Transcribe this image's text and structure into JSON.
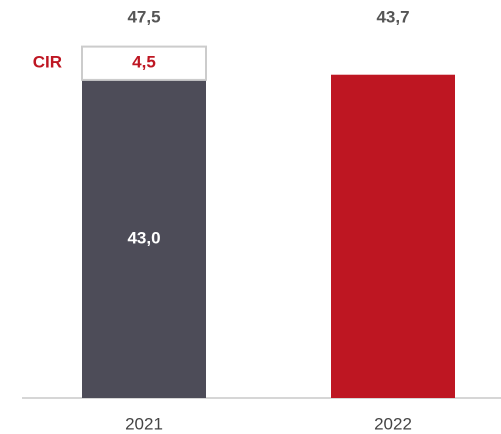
{
  "chart_data": {
    "type": "bar",
    "stacked": true,
    "categories": [
      "2021",
      "2022"
    ],
    "ylim": [
      0,
      53.8
    ],
    "bar_colors": [
      "#4d4c58",
      "#be1622"
    ],
    "series": [
      {
        "values": [
          43.0,
          43.7
        ],
        "value_labels": [
          "43,0",
          null
        ]
      },
      {
        "name": "CIR",
        "color": "#ffffff",
        "border": "#cccccc",
        "label_color": "#be1622",
        "values": [
          4.5,
          null
        ],
        "value_labels": [
          "4,5",
          null
        ]
      }
    ],
    "totals": [
      47.5,
      43.7
    ],
    "total_labels": [
      "47,5",
      "43,7"
    ]
  }
}
